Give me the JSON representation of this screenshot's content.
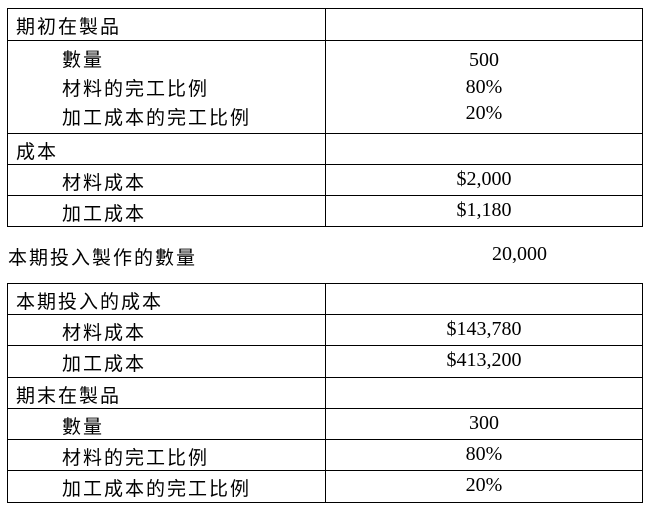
{
  "beginning_wip_table": {
    "heading": "期初在製品",
    "rows": [
      {
        "label": "數量",
        "value": "500"
      },
      {
        "label": "材料的完工比例",
        "value": "80%"
      },
      {
        "label": "加工成本的完工比例",
        "value": "20%"
      }
    ],
    "cost_heading": "成本",
    "cost_rows": [
      {
        "label": "材料成本",
        "value": "$2,000"
      },
      {
        "label": "加工成本",
        "value": "$1,180"
      }
    ]
  },
  "units_started": {
    "label": "本期投入製作的數量",
    "value": "20,000"
  },
  "second_table": {
    "cost_heading": "本期投入的成本",
    "cost_rows": [
      {
        "label": "材料成本",
        "value": "$143,780"
      },
      {
        "label": "加工成本",
        "value": "$413,200"
      }
    ],
    "ending_heading": "期末在製品",
    "ending_rows": [
      {
        "label": "數量",
        "value": "300"
      },
      {
        "label": "材料的完工比例",
        "value": "80%"
      },
      {
        "label": "加工成本的完工比例",
        "value": "20%"
      }
    ]
  }
}
